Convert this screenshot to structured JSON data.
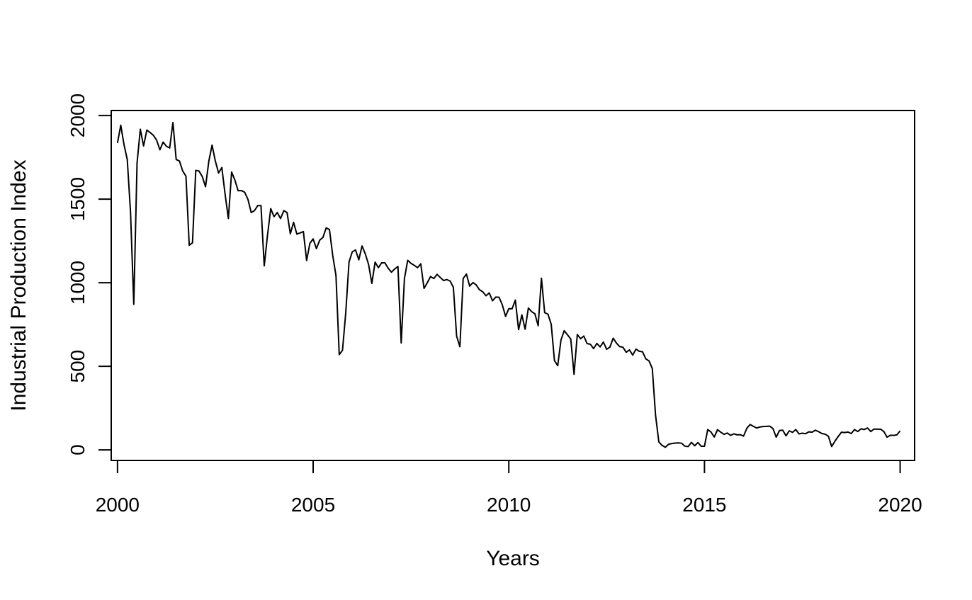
{
  "chart_data": {
    "type": "line",
    "title": "",
    "xlabel": "Years",
    "ylabel": "Industrial Production Index",
    "xlim": [
      1999.84,
      2020.37
    ],
    "ylim": [
      -63,
      2030
    ],
    "x_ticks": [
      2000,
      2005,
      2010,
      2015,
      2020
    ],
    "x_tick_labels": [
      "2000",
      "2005",
      "2010",
      "2015",
      "2020"
    ],
    "y_ticks": [
      0,
      500,
      1000,
      1500,
      2000
    ],
    "y_tick_labels": [
      "0",
      "500",
      "1000",
      "1500",
      "2000"
    ],
    "grid": false,
    "legend": "none",
    "line_color": "#000000",
    "series": [
      {
        "x_start": 2000,
        "x_step": 0.08333333,
        "values": [
          1836,
          1942,
          1826,
          1736,
          1421,
          871,
          1716,
          1918,
          1818,
          1913,
          1898,
          1882,
          1853,
          1795,
          1841,
          1816,
          1806,
          1958,
          1737,
          1728,
          1668,
          1637,
          1224,
          1239,
          1672,
          1668,
          1635,
          1574,
          1726,
          1823,
          1728,
          1656,
          1689,
          1529,
          1384,
          1662,
          1614,
          1550,
          1551,
          1541,
          1499,
          1420,
          1431,
          1461,
          1461,
          1101,
          1284,
          1443,
          1395,
          1420,
          1384,
          1431,
          1420,
          1293,
          1361,
          1291,
          1298,
          1306,
          1133,
          1236,
          1262,
          1204,
          1254,
          1271,
          1328,
          1318,
          1163,
          1043,
          570,
          596,
          821,
          1124,
          1185,
          1196,
          1137,
          1220,
          1172,
          1109,
          996,
          1123,
          1090,
          1119,
          1119,
          1087,
          1063,
          1082,
          1097,
          640,
          1026,
          1134,
          1116,
          1104,
          1090,
          1113,
          966,
          1000,
          1037,
          1025,
          1050,
          1031,
          1013,
          1019,
          1010,
          972,
          680,
          617,
          1025,
          1052,
          980,
          1001,
          987,
          958,
          946,
          922,
          939,
          892,
          914,
          913,
          868,
          799,
          845,
          844,
          896,
          719,
          808,
          722,
          849,
          827,
          814,
          743,
          1027,
          821,
          812,
          752,
          534,
          504,
          658,
          713,
          688,
          663,
          452,
          690,
          665,
          681,
          636,
          632,
          606,
          637,
          616,
          645,
          602,
          615,
          668,
          639,
          618,
          614,
          584,
          598,
          567,
          603,
          590,
          587,
          545,
          532,
          487,
          207,
          48,
          27,
          16,
          34,
          38,
          41,
          42,
          40,
          22,
          20,
          45,
          25,
          44,
          22,
          22,
          122,
          107,
          77,
          121,
          106,
          93,
          101,
          87,
          96,
          90,
          91,
          83,
          130,
          152,
          141,
          131,
          137,
          140,
          141,
          142,
          128,
          76,
          116,
          118,
          84,
          114,
          105,
          122,
          96,
          100,
          97,
          108,
          106,
          118,
          109,
          98,
          94,
          82,
          20,
          52,
          80,
          106,
          104,
          107,
          98,
          122,
          110,
          126,
          122,
          131,
          110,
          125,
          124,
          124,
          110,
          76,
          88,
          87,
          90,
          114
        ]
      }
    ]
  }
}
